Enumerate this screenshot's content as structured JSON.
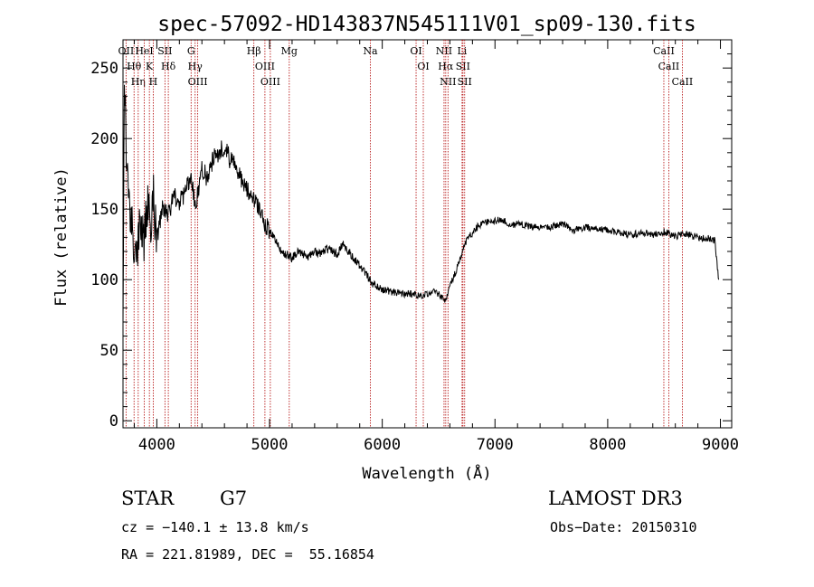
{
  "chart_data": {
    "type": "line",
    "title": "spec-57092-HD143837N545111V01_sp09-130.fits",
    "xlabel": "Wavelength (Å)",
    "ylabel": "Flux (relative)",
    "xlim": [
      3700,
      9100
    ],
    "ylim": [
      -5,
      270
    ],
    "xticks": [
      4000,
      5000,
      6000,
      7000,
      8000,
      9000
    ],
    "xtick_labels": [
      "4000",
      "5000",
      "6000",
      "7000",
      "8000",
      "9000"
    ],
    "yticks": [
      0,
      50,
      100,
      150,
      200,
      250
    ],
    "ytick_labels": [
      "0",
      "50",
      "100",
      "150",
      "200",
      "250"
    ],
    "series": [
      {
        "color": "#000000",
        "x": [
          3700,
          3712,
          3725,
          3740,
          3760,
          3780,
          3800,
          3830,
          3860,
          3890,
          3920,
          3950,
          3970,
          4000,
          4050,
          4100,
          4150,
          4200,
          4250,
          4300,
          4340,
          4400,
          4450,
          4500,
          4550,
          4600,
          4650,
          4700,
          4750,
          4800,
          4850,
          4900,
          4950,
          5000,
          5050,
          5100,
          5150,
          5200,
          5250,
          5300,
          5350,
          5400,
          5450,
          5500,
          5550,
          5600,
          5650,
          5700,
          5750,
          5800,
          5850,
          5900,
          5950,
          6000,
          6050,
          6100,
          6150,
          6200,
          6250,
          6300,
          6350,
          6400,
          6450,
          6500,
          6530,
          6563,
          6600,
          6650,
          6700,
          6750,
          6800,
          6850,
          6900,
          6950,
          7000,
          7050,
          7100,
          7150,
          7200,
          7300,
          7400,
          7500,
          7600,
          7700,
          7800,
          7900,
          8000,
          8100,
          8200,
          8300,
          8400,
          8500,
          8600,
          8700,
          8800,
          8900,
          8950,
          8985
        ],
        "y": [
          60,
          240,
          200,
          165,
          150,
          140,
          130,
          120,
          145,
          128,
          150,
          138,
          155,
          130,
          150,
          145,
          160,
          155,
          160,
          175,
          150,
          180,
          170,
          185,
          190,
          195,
          185,
          180,
          170,
          165,
          160,
          150,
          140,
          135,
          128,
          120,
          118,
          115,
          120,
          118,
          116,
          120,
          118,
          122,
          120,
          118,
          125,
          120,
          115,
          110,
          105,
          98,
          95,
          93,
          92,
          91,
          91,
          90,
          90,
          89,
          88,
          90,
          92,
          90,
          88,
          85,
          95,
          105,
          118,
          128,
          133,
          138,
          140,
          141,
          142,
          142,
          141,
          138,
          140,
          138,
          137,
          137,
          140,
          135,
          137,
          136,
          135,
          133,
          132,
          133,
          132,
          134,
          131,
          132,
          130,
          129,
          128,
          100
        ]
      }
    ],
    "spectral_lines": [
      {
        "label": "OII",
        "x": 3727
      },
      {
        "label": "Hθ",
        "x": 3798
      },
      {
        "label": "Hη",
        "x": 3835
      },
      {
        "label": "HeI",
        "x": 3889
      },
      {
        "label": "K",
        "x": 3934
      },
      {
        "label": "H",
        "x": 3968
      },
      {
        "label": "SII",
        "x": 4072
      },
      {
        "label": "Hδ",
        "x": 4102
      },
      {
        "label": "G",
        "x": 4304
      },
      {
        "label": "Hγ",
        "x": 4340
      },
      {
        "label": "OIII",
        "x": 4363
      },
      {
        "label": "Hβ",
        "x": 4861
      },
      {
        "label": "OIII",
        "x": 4959
      },
      {
        "label": "OIII",
        "x": 5007
      },
      {
        "label": "Mg",
        "x": 5175
      },
      {
        "label": "Na",
        "x": 5894
      },
      {
        "label": "OI",
        "x": 6300
      },
      {
        "label": "OI",
        "x": 6364
      },
      {
        "label": "NII",
        "x": 6548
      },
      {
        "label": "Hα",
        "x": 6563
      },
      {
        "label": "NII",
        "x": 6583
      },
      {
        "label": "Li",
        "x": 6708
      },
      {
        "label": "SII",
        "x": 6716
      },
      {
        "label": "SII",
        "x": 6731
      },
      {
        "label": "CaII",
        "x": 8498
      },
      {
        "label": "CaII",
        "x": 8542
      },
      {
        "label": "CaII",
        "x": 8662
      }
    ]
  },
  "info": {
    "object_class": "STAR",
    "subclass": "G7",
    "survey": "LAMOST DR3",
    "redshift": "cz = −140.1 ± 13.8 km/s",
    "obs_date": "Obs−Date: 20150310",
    "coords": "RA = 221.81989, DEC =  55.16854"
  }
}
